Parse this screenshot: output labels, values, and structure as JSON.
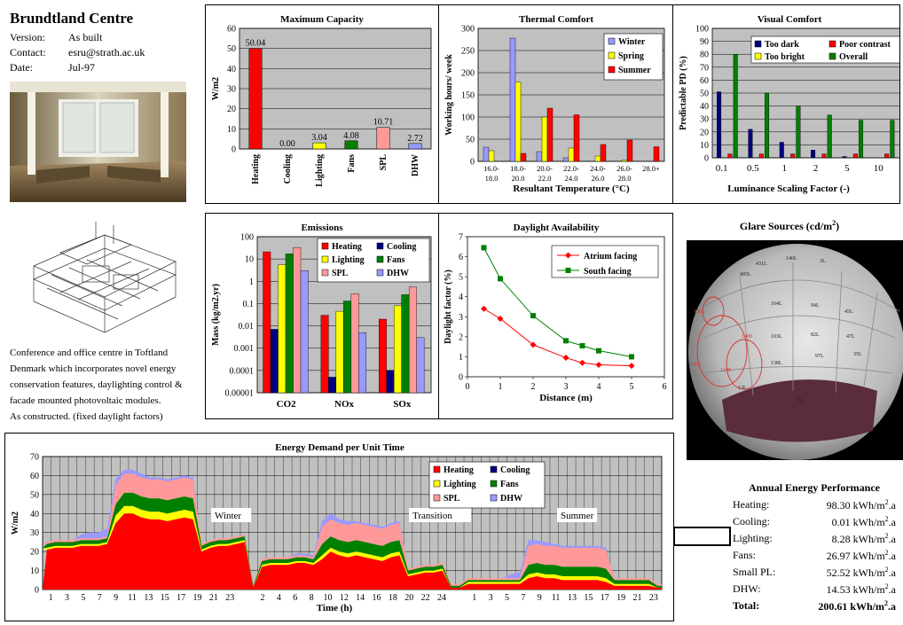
{
  "header": {
    "title": "Brundtland Centre",
    "meta": [
      {
        "key": "Version:",
        "value": "As built"
      },
      {
        "key": "Contact:",
        "value": "esru@strath.ac.uk"
      },
      {
        "key": "Date:",
        "value": "Jul-97"
      }
    ]
  },
  "description": [
    "Conference and office centre in Toftland",
    "Denmark which incorporates novel energy",
    "conservation features, daylighting control &",
    "facade mounted photovoltaic modules.",
    "As constructed. (fixed daylight factors)"
  ],
  "colors": {
    "plot_bg": "#c0c0c0",
    "heating": "#ff0000",
    "cooling": "#000080",
    "lighting": "#ffff00",
    "fans": "#008000",
    "spl": "#ff9999",
    "dhw": "#9999ff",
    "winter": "#9999ff",
    "spring": "#ffff00",
    "summer": "#ff0000",
    "too_dark": "#000080",
    "too_bright": "#ffff00",
    "poor_contrast": "#ff0000",
    "overall": "#008000",
    "atrium": "#ff0000",
    "south": "#008000"
  },
  "glare": {
    "title": "Glare Sources (cd/m",
    "title_sup": "2",
    "title_end": ")"
  },
  "performance": {
    "title": "Annual Energy Performance",
    "unit": "kWh/m",
    "unit_sup": "2",
    "unit_end": ".a",
    "rows": [
      {
        "label": "Heating:",
        "value": "98.30"
      },
      {
        "label": "Cooling:",
        "value": "0.01"
      },
      {
        "label": "Lighting:",
        "value": "8.28"
      },
      {
        "label": "Fans:",
        "value": "26.97"
      },
      {
        "label": "Small PL:",
        "value": "52.52"
      },
      {
        "label": "DHW:",
        "value": "14.53"
      }
    ],
    "total_label": "Total:",
    "total_value": "200.61"
  },
  "chart_data": [
    {
      "id": "max-capacity",
      "type": "bar",
      "title": "Maximum Capacity",
      "ylabel": "W/m2",
      "xlabel": "",
      "ylim": [
        0,
        60
      ],
      "yticks": [
        0,
        10,
        20,
        30,
        40,
        50,
        60
      ],
      "categories": [
        "Heating",
        "Cooling",
        "Lighting",
        "Fans",
        "SPL",
        "DHW"
      ],
      "values": [
        50.04,
        0.0,
        3.04,
        4.08,
        10.71,
        2.72
      ],
      "value_labels": [
        "50.04",
        "0.00",
        "3.04",
        "4.08",
        "10.71",
        "2.72"
      ],
      "bar_colors": [
        "#ff0000",
        "#000080",
        "#ffff00",
        "#008000",
        "#ff9999",
        "#9999ff"
      ]
    },
    {
      "id": "thermal-comfort",
      "type": "bar",
      "title": "Thermal Comfort",
      "ylabel": "Working hours/ week",
      "xlabel": "Resultant Temperature (°C)",
      "ylim": [
        0,
        300
      ],
      "yticks": [
        0,
        50,
        100,
        150,
        200,
        250,
        300
      ],
      "categories": [
        "16.0-18.0",
        "18.0-20.0",
        "20.0-22.0",
        "22.0-24.0",
        "24.0-26.0",
        "26.0-28.0",
        "28.0+"
      ],
      "category_lines": [
        [
          "16.0-",
          "18.0"
        ],
        [
          "18.0-",
          "20.0"
        ],
        [
          "20.0-",
          "22.0"
        ],
        [
          "22.0-",
          "24.0"
        ],
        [
          "24.0-",
          "26.0"
        ],
        [
          "26.0-",
          "28.0"
        ],
        [
          "28.0+",
          ""
        ]
      ],
      "legend": "top-right",
      "series": [
        {
          "name": "Winter",
          "color": "#9999ff",
          "values": [
            32,
            278,
            22,
            8,
            0,
            0,
            0
          ]
        },
        {
          "name": "Spring",
          "color": "#ffff00",
          "values": [
            24,
            179,
            100,
            30,
            12,
            3,
            0
          ]
        },
        {
          "name": "Summer",
          "color": "#ff0000",
          "values": [
            0,
            18,
            120,
            105,
            38,
            48,
            33
          ]
        }
      ]
    },
    {
      "id": "visual-comfort",
      "type": "bar",
      "title": "Visual Comfort",
      "ylabel": "Predictable PD (%)",
      "xlabel": "Luminance Scaling Factor (-)",
      "ylim": [
        0,
        100
      ],
      "yticks": [
        0,
        10,
        20,
        30,
        40,
        50,
        60,
        70,
        80,
        90,
        100
      ],
      "categories": [
        "0.1",
        "0.5",
        "1",
        "2",
        "5",
        "10"
      ],
      "legend": "top",
      "series": [
        {
          "name": "Too dark",
          "color": "#000080",
          "values": [
            51,
            22,
            12,
            6,
            1,
            0
          ]
        },
        {
          "name": "Too bright",
          "color": "#ffff00",
          "values": [
            0,
            0,
            0,
            0,
            0,
            0
          ]
        },
        {
          "name": "Poor contrast",
          "color": "#ff0000",
          "values": [
            3,
            3,
            3,
            3,
            3,
            3
          ]
        },
        {
          "name": "Overall",
          "color": "#008000",
          "values": [
            80,
            50,
            40,
            33,
            29,
            29
          ]
        }
      ]
    },
    {
      "id": "emissions",
      "type": "bar",
      "title": "Emissions",
      "ylabel": "Mass (kg/m2.yr)",
      "xlabel": "",
      "scale": "log",
      "ylim": [
        1e-05,
        100
      ],
      "ytick_labels": [
        "100",
        "10",
        "1",
        "0.1",
        "0.01",
        "0.001",
        "0.0001",
        "0.00001"
      ],
      "categories": [
        "CO2",
        "NOx",
        "SOx"
      ],
      "legend": "top-right",
      "series": [
        {
          "name": "Heating",
          "color": "#ff0000",
          "values": [
            21,
            0.03,
            0.02
          ]
        },
        {
          "name": "Cooling",
          "color": "#000080",
          "values": [
            0.007,
            5e-05,
            0.0001
          ]
        },
        {
          "name": "Lighting",
          "color": "#ffff00",
          "values": [
            5.5,
            0.045,
            0.08
          ]
        },
        {
          "name": "Fans",
          "color": "#008000",
          "values": [
            17,
            0.13,
            0.25
          ]
        },
        {
          "name": "SPL",
          "color": "#ff9999",
          "values": [
            33,
            0.28,
            0.55
          ]
        },
        {
          "name": "DHW",
          "color": "#9999ff",
          "values": [
            3,
            0.005,
            0.003
          ]
        }
      ]
    },
    {
      "id": "daylight-availability",
      "type": "line",
      "title": "Daylight Availability",
      "ylabel": "Daylight factor (%)",
      "xlabel": "Distance (m)",
      "xlim": [
        0,
        6
      ],
      "ylim": [
        0,
        7
      ],
      "xticks": [
        0,
        1,
        2,
        3,
        4,
        5,
        6
      ],
      "yticks": [
        0,
        1,
        2,
        3,
        4,
        5,
        6,
        7
      ],
      "legend": "top-right",
      "series": [
        {
          "name": "Atrium facing",
          "color": "#ff0000",
          "marker": "diamond",
          "x": [
            0.5,
            1,
            2,
            3,
            3.5,
            4,
            5
          ],
          "y": [
            3.4,
            2.9,
            1.6,
            0.95,
            0.7,
            0.6,
            0.55
          ]
        },
        {
          "name": "South facing",
          "color": "#008000",
          "marker": "square",
          "x": [
            0.5,
            1,
            2,
            3,
            3.5,
            4,
            5
          ],
          "y": [
            6.45,
            4.9,
            3.05,
            1.8,
            1.55,
            1.3,
            1.0
          ]
        }
      ]
    },
    {
      "id": "energy-demand",
      "type": "area",
      "stacked": true,
      "title": "Energy Demand per Unit Time",
      "ylabel": "W/m2",
      "xlabel": "Time (h)",
      "ylim": [
        0,
        70
      ],
      "yticks": [
        0,
        10,
        20,
        30,
        40,
        50,
        60,
        70
      ],
      "x_tick_labels": [
        "1",
        "3",
        "5",
        "7",
        "9",
        "11",
        "13",
        "15",
        "17",
        "19",
        "21",
        "23",
        "",
        "2",
        "4",
        "6",
        "8",
        "10",
        "12",
        "14",
        "16",
        "18",
        "20",
        "22",
        "24",
        "",
        "1",
        "3",
        "5",
        "7",
        "9",
        "11",
        "13",
        "15",
        "17",
        "19",
        "21",
        "23"
      ],
      "annotations": [
        "Winter",
        "Transition",
        "Summer"
      ],
      "legend": "top-right",
      "series": [
        {
          "name": "Heating",
          "color": "#ff0000",
          "values": [
            21,
            22,
            22,
            22,
            23,
            23,
            23,
            24,
            35,
            40,
            40,
            38,
            37,
            37,
            36,
            37,
            38,
            37,
            20,
            22,
            23,
            23,
            24,
            25,
            1,
            12,
            13,
            13,
            13,
            14,
            14,
            13,
            16,
            20,
            18,
            17,
            18,
            17,
            16,
            15,
            17,
            18,
            7,
            8,
            9,
            9,
            10,
            1,
            1,
            3,
            3,
            3,
            3,
            3,
            3,
            3,
            6,
            7,
            6,
            6,
            5,
            5,
            5,
            5,
            5,
            4,
            2,
            2,
            2,
            2,
            2,
            1
          ]
        },
        {
          "name": "Cooling",
          "color": "#000080",
          "values": [
            0,
            0,
            0,
            0,
            0,
            0,
            0,
            0,
            0,
            0,
            0,
            0,
            0,
            0,
            0,
            0,
            0,
            0,
            0,
            0,
            0,
            0,
            0,
            0,
            0,
            0,
            0,
            0,
            0,
            0,
            0,
            0,
            0,
            0,
            0,
            0,
            0,
            0,
            0,
            0,
            0,
            0,
            0,
            0,
            0,
            0,
            0,
            0,
            0,
            0,
            0,
            0,
            0,
            0,
            0,
            0,
            0,
            0,
            0,
            0,
            0,
            0,
            0,
            0,
            0,
            0,
            0,
            0,
            0,
            0,
            0,
            0
          ]
        },
        {
          "name": "Lighting",
          "color": "#ffff00",
          "values": [
            1,
            1,
            1,
            1,
            1,
            1,
            1,
            1,
            4,
            4,
            4,
            4,
            4,
            4,
            4,
            4,
            4,
            4,
            1,
            1,
            1,
            1,
            1,
            1,
            0,
            1,
            1,
            1,
            1,
            1,
            1,
            1,
            2,
            2,
            2,
            2,
            2,
            2,
            2,
            2,
            2,
            2,
            1,
            1,
            1,
            1,
            1,
            0,
            0,
            1,
            1,
            1,
            1,
            1,
            1,
            1,
            2,
            2,
            2,
            2,
            2,
            2,
            2,
            2,
            2,
            2,
            1,
            1,
            1,
            1,
            1,
            0
          ]
        },
        {
          "name": "Fans",
          "color": "#008000",
          "values": [
            2,
            2,
            2,
            2,
            2,
            2,
            2,
            2,
            6,
            7,
            7,
            7,
            7,
            7,
            7,
            7,
            7,
            7,
            2,
            2,
            2,
            2,
            2,
            2,
            1,
            2,
            2,
            2,
            2,
            2,
            2,
            2,
            6,
            6,
            6,
            6,
            6,
            6,
            6,
            6,
            6,
            6,
            2,
            2,
            2,
            2,
            2,
            1,
            1,
            1,
            1,
            1,
            1,
            1,
            1,
            1,
            5,
            5,
            5,
            5,
            5,
            5,
            5,
            5,
            5,
            5,
            2,
            2,
            2,
            2,
            2,
            1
          ]
        },
        {
          "name": "SPL",
          "color": "#ff9999",
          "values": [
            1,
            1,
            1,
            1,
            1,
            1,
            1,
            1,
            10,
            10,
            10,
            10,
            10,
            10,
            10,
            10,
            10,
            10,
            1,
            1,
            1,
            1,
            1,
            1,
            1,
            1,
            1,
            1,
            1,
            1,
            1,
            1,
            9,
            9,
            9,
            9,
            9,
            9,
            9,
            9,
            9,
            9,
            1,
            1,
            1,
            1,
            1,
            1,
            1,
            1,
            1,
            1,
            1,
            1,
            1,
            1,
            10,
            10,
            10,
            10,
            10,
            10,
            10,
            10,
            10,
            10,
            1,
            1,
            1,
            1,
            1,
            1
          ]
        },
        {
          "name": "DHW",
          "color": "#9999ff",
          "values": [
            0,
            0,
            0,
            0,
            2,
            3,
            3,
            4,
            3,
            2,
            2,
            2,
            1,
            1,
            1,
            1,
            1,
            1,
            0,
            0,
            0,
            0,
            0,
            0,
            0,
            0,
            0,
            0,
            0,
            1,
            1,
            1,
            3,
            3,
            2,
            2,
            1,
            1,
            1,
            1,
            1,
            1,
            0,
            0,
            0,
            0,
            0,
            0,
            0,
            0,
            0,
            0,
            0,
            0,
            2,
            3,
            3,
            2,
            2,
            1,
            1,
            1,
            1,
            1,
            1,
            1,
            0,
            0,
            0,
            0,
            0,
            0
          ]
        }
      ]
    }
  ]
}
